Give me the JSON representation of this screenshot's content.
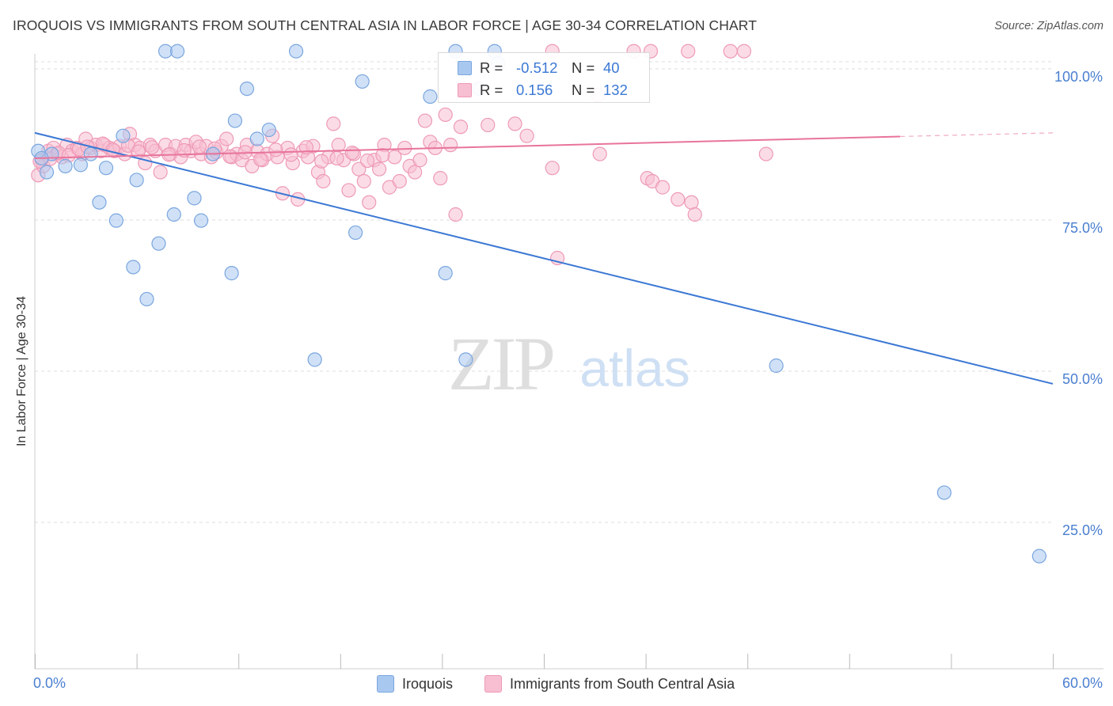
{
  "title": "IROQUOIS VS IMMIGRANTS FROM SOUTH CENTRAL ASIA IN LABOR FORCE | AGE 30-34 CORRELATION CHART",
  "source": "Source: ZipAtlas.com",
  "watermark": {
    "zip": "ZIP",
    "atlas": "atlas"
  },
  "legend_top": {
    "rows": [
      {
        "r_label": "R =",
        "r_value": "-0.512",
        "n_label": "N =",
        "n_value": "40"
      },
      {
        "r_label": "R =",
        "r_value": "0.156",
        "n_label": "N =",
        "n_value": "132"
      }
    ]
  },
  "bottom_legend": [
    "Iroquois",
    "Immigrants from South Central Asia"
  ],
  "colors": {
    "blue_fill": "#a9c8f0",
    "blue_stroke": "#7aa6df",
    "blue_line": "#3b78d4",
    "pink_fill": "#f7bfd1",
    "pink_stroke": "#ee9ab6",
    "pink_line": "#e8749b",
    "tick_label": "#4a7fd0",
    "grid": "#dddddd"
  },
  "chart_data": {
    "type": "scatter",
    "title": "IROQUOIS VS IMMIGRANTS FROM SOUTH CENTRAL ASIA IN LABOR FORCE | AGE 30-34 CORRELATION CHART",
    "xlabel": "",
    "ylabel": "In Labor Force | Age 30-34",
    "xlim": [
      0,
      60
    ],
    "ylim": [
      0,
      105
    ],
    "x_tick_labels": [
      "0.0%",
      "60.0%"
    ],
    "x_ticks": [
      0,
      6,
      12,
      18,
      24,
      30,
      36,
      42,
      48,
      54,
      60
    ],
    "y_ticks": [
      25,
      50,
      75,
      100
    ],
    "y_tick_labels": [
      "25.0%",
      "50.0%",
      "75.0%",
      "100.0%"
    ],
    "grid": true,
    "series": [
      {
        "name": "Iroquois",
        "trend": {
          "x": [
            0,
            60
          ],
          "y": [
            88.5,
            47.0
          ]
        },
        "points": [
          [
            0.2,
            85.5
          ],
          [
            0.7,
            82.0
          ],
          [
            1.0,
            85.0
          ],
          [
            1.8,
            83.0
          ],
          [
            2.7,
            83.2
          ],
          [
            3.3,
            85.0
          ],
          [
            3.8,
            77.0
          ],
          [
            4.2,
            82.7
          ],
          [
            4.8,
            74.0
          ],
          [
            5.2,
            88.0
          ],
          [
            5.8,
            66.3
          ],
          [
            6.0,
            80.7
          ],
          [
            6.6,
            61.0
          ],
          [
            7.3,
            70.2
          ],
          [
            7.7,
            102.0
          ],
          [
            8.4,
            102.0
          ],
          [
            8.2,
            75.0
          ],
          [
            9.4,
            77.7
          ],
          [
            9.8,
            74.0
          ],
          [
            10.5,
            85.0
          ],
          [
            11.6,
            65.3
          ],
          [
            11.8,
            90.5
          ],
          [
            12.5,
            95.8
          ],
          [
            13.1,
            87.5
          ],
          [
            13.8,
            89.0
          ],
          [
            15.4,
            102.0
          ],
          [
            16.5,
            51.0
          ],
          [
            18.9,
            72.0
          ],
          [
            19.3,
            97.0
          ],
          [
            23.3,
            94.5
          ],
          [
            24.2,
            65.3
          ],
          [
            24.8,
            102.0
          ],
          [
            25.4,
            51.0
          ],
          [
            26.2,
            95.8
          ],
          [
            27.1,
            102.0
          ],
          [
            27.3,
            100.0
          ],
          [
            43.7,
            50.0
          ],
          [
            53.6,
            29.0
          ],
          [
            59.2,
            18.5
          ],
          [
            0.4,
            84.3
          ]
        ]
      },
      {
        "name": "Immigrants from South Central Asia",
        "trend": {
          "x": [
            0,
            51
          ],
          "y": [
            84.3,
            87.9
          ]
        },
        "trend_dashed": {
          "x": [
            51,
            60
          ],
          "y": [
            87.9,
            88.5
          ]
        },
        "points": [
          [
            0.2,
            81.5
          ],
          [
            0.4,
            84.0
          ],
          [
            0.5,
            83.0
          ],
          [
            0.8,
            85.5
          ],
          [
            1.1,
            86.0
          ],
          [
            1.3,
            85.0
          ],
          [
            1.6,
            84.5
          ],
          [
            1.9,
            86.5
          ],
          [
            2.2,
            85.5
          ],
          [
            2.5,
            86.0
          ],
          [
            2.8,
            85.0
          ],
          [
            3.0,
            87.5
          ],
          [
            3.3,
            86.0
          ],
          [
            3.6,
            86.5
          ],
          [
            3.9,
            85.5
          ],
          [
            4.1,
            86.5
          ],
          [
            4.4,
            86.0
          ],
          [
            4.7,
            85.5
          ],
          [
            5.0,
            86.3
          ],
          [
            5.3,
            85.0
          ],
          [
            5.6,
            88.3
          ],
          [
            5.9,
            86.5
          ],
          [
            6.2,
            86.0
          ],
          [
            6.5,
            83.5
          ],
          [
            6.8,
            86.5
          ],
          [
            7.1,
            85.5
          ],
          [
            7.4,
            82.0
          ],
          [
            7.7,
            86.5
          ],
          [
            8.0,
            85.0
          ],
          [
            8.3,
            86.3
          ],
          [
            8.6,
            84.5
          ],
          [
            8.9,
            86.5
          ],
          [
            9.2,
            85.5
          ],
          [
            9.5,
            87.0
          ],
          [
            9.8,
            85.0
          ],
          [
            10.1,
            86.3
          ],
          [
            10.4,
            84.5
          ],
          [
            10.7,
            85.3
          ],
          [
            11.0,
            86.3
          ],
          [
            11.3,
            87.5
          ],
          [
            11.6,
            84.5
          ],
          [
            11.9,
            85.0
          ],
          [
            12.2,
            84.0
          ],
          [
            12.5,
            86.5
          ],
          [
            12.8,
            83.0
          ],
          [
            13.1,
            85.5
          ],
          [
            13.4,
            84.0
          ],
          [
            13.7,
            85.0
          ],
          [
            14.0,
            88.0
          ],
          [
            14.3,
            84.5
          ],
          [
            14.6,
            78.5
          ],
          [
            14.9,
            86.0
          ],
          [
            15.2,
            83.5
          ],
          [
            15.5,
            77.5
          ],
          [
            15.8,
            85.5
          ],
          [
            16.1,
            84.5
          ],
          [
            16.4,
            86.3
          ],
          [
            16.7,
            82.0
          ],
          [
            17.0,
            80.5
          ],
          [
            17.3,
            84.5
          ],
          [
            17.6,
            90.0
          ],
          [
            17.9,
            86.5
          ],
          [
            18.2,
            84.0
          ],
          [
            18.5,
            79.0
          ],
          [
            18.8,
            85.0
          ],
          [
            19.1,
            82.5
          ],
          [
            19.4,
            80.5
          ],
          [
            19.7,
            77.0
          ],
          [
            20.0,
            84.0
          ],
          [
            20.3,
            82.5
          ],
          [
            20.6,
            86.5
          ],
          [
            20.9,
            79.5
          ],
          [
            21.2,
            84.5
          ],
          [
            21.5,
            80.5
          ],
          [
            21.8,
            86.0
          ],
          [
            22.1,
            83.0
          ],
          [
            22.4,
            82.0
          ],
          [
            22.7,
            84.0
          ],
          [
            23.0,
            90.5
          ],
          [
            23.3,
            87.0
          ],
          [
            23.6,
            86.0
          ],
          [
            23.9,
            81.0
          ],
          [
            24.2,
            91.5
          ],
          [
            24.5,
            86.5
          ],
          [
            24.8,
            75.0
          ],
          [
            25.1,
            89.5
          ],
          [
            26.7,
            89.8
          ],
          [
            28.3,
            90.0
          ],
          [
            29.0,
            88.0
          ],
          [
            30.5,
            82.7
          ],
          [
            33.3,
            85.0
          ],
          [
            36.1,
            81.0
          ],
          [
            36.4,
            80.5
          ],
          [
            37.0,
            79.5
          ],
          [
            37.9,
            77.5
          ],
          [
            38.5,
            102.0
          ],
          [
            38.7,
            77.0
          ],
          [
            38.9,
            75.0
          ],
          [
            41.8,
            102.0
          ],
          [
            43.1,
            85.0
          ],
          [
            35.3,
            102.0
          ],
          [
            36.3,
            102.0
          ],
          [
            41.0,
            102.0
          ],
          [
            33.2,
            94.8
          ],
          [
            30.5,
            102.0
          ],
          [
            30.8,
            67.8
          ],
          [
            0.3,
            83.8
          ],
          [
            0.9,
            84.2
          ],
          [
            1.4,
            85.2
          ],
          [
            2.0,
            84.8
          ],
          [
            2.6,
            85.8
          ],
          [
            3.1,
            86.2
          ],
          [
            4.0,
            86.7
          ],
          [
            4.6,
            85.7
          ],
          [
            5.5,
            86.4
          ],
          [
            6.1,
            85.4
          ],
          [
            6.9,
            86.1
          ],
          [
            7.9,
            84.9
          ],
          [
            8.8,
            85.6
          ],
          [
            9.7,
            86.2
          ],
          [
            10.6,
            85.9
          ],
          [
            11.5,
            84.6
          ],
          [
            12.4,
            85.3
          ],
          [
            13.3,
            84.1
          ],
          [
            14.2,
            85.7
          ],
          [
            15.1,
            84.9
          ],
          [
            16.0,
            86.1
          ],
          [
            16.9,
            83.8
          ],
          [
            17.8,
            84.3
          ],
          [
            18.7,
            85.2
          ],
          [
            19.6,
            83.9
          ],
          [
            20.5,
            84.8
          ]
        ]
      }
    ]
  }
}
